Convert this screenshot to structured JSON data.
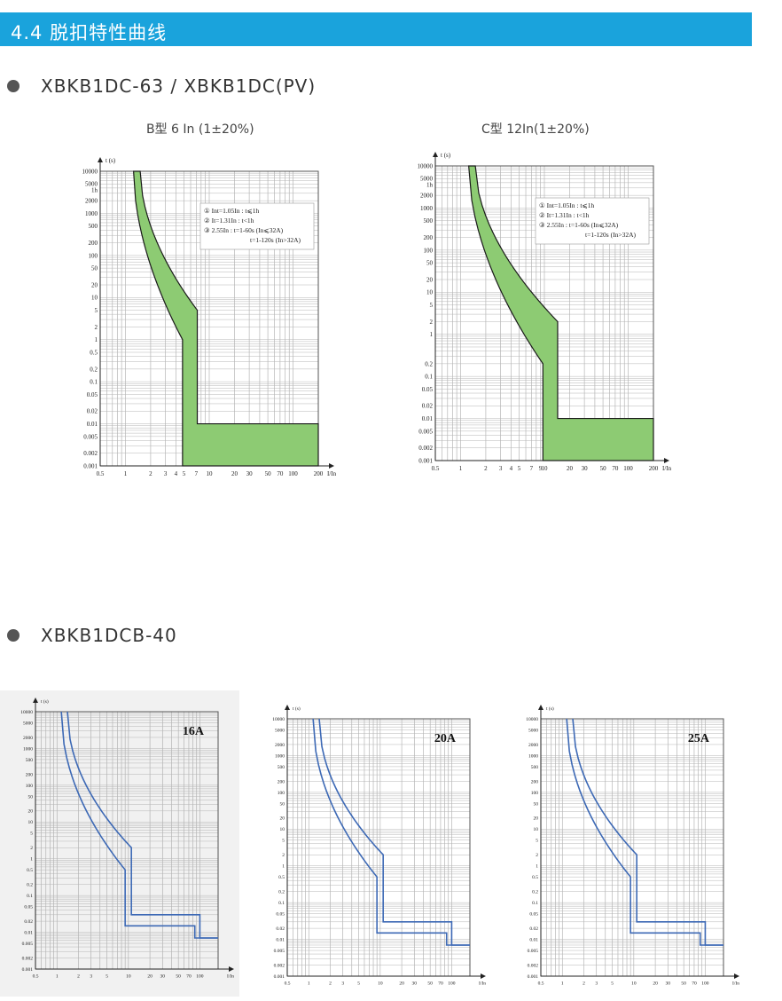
{
  "header": {
    "title": "4.4 脱扣特性曲线"
  },
  "sections": [
    {
      "bullet_label": "XBKB1DC-63 / XBKB1DC(PV)"
    },
    {
      "bullet_label": "XBKB1DCB-40"
    }
  ],
  "colors": {
    "header": "#1aa3dc",
    "band_fill": "#8dcb73",
    "curve_blue": "#3d69b5",
    "grid": "#b5b5b5"
  },
  "chart_data": [
    {
      "type": "line",
      "title": "B型 6 In (1±20%)",
      "ylabel": "t (s)",
      "xlabel": "I/In",
      "x_ticks": [
        "0.5",
        "1",
        "2",
        "3",
        "4",
        "5",
        "7",
        "10",
        "20",
        "30",
        "50",
        "70",
        "100",
        "200"
      ],
      "y_ticks": [
        "10000",
        "5000",
        "1h",
        "2000",
        "1000",
        "500",
        "200",
        "100",
        "50",
        "20",
        "10",
        "5",
        "2",
        "1",
        "0.5",
        "0.2",
        "0.1",
        "0.05",
        "0.02",
        "0.01",
        "0.005",
        "0.002",
        "0.001"
      ],
      "notes": [
        "① Int=1.05In : t⩽1h",
        "② It=1.31In : t<1h",
        "③ 2.55In : t=1-60s (In⩽32A)",
        "t=1-120s (In>32A)"
      ],
      "band": {
        "min_trip_multiple": 4.8,
        "max_trip_multiple": 7.2,
        "instant_time_s": 0.01
      }
    },
    {
      "type": "line",
      "title": "C型 12In(1±20%)",
      "ylabel": "t (s)",
      "xlabel": "I/In",
      "x_ticks": [
        "0.5",
        "1",
        "2",
        "3",
        "4",
        "5",
        "7",
        "9",
        "10",
        "20",
        "30",
        "50",
        "70",
        "100",
        "200"
      ],
      "y_ticks": [
        "10000",
        "5000",
        "1h",
        "2000",
        "1000",
        "500",
        "200",
        "100",
        "50",
        "20",
        "10",
        "5",
        "2",
        "1",
        "0.2",
        "0.1",
        "0.05",
        "0.02",
        "0.01",
        "0.005",
        "0.002",
        "0.001"
      ],
      "notes": [
        "① Int=1.05In : t⩽1h",
        "② It=1.31In : t<1h",
        "③ 2.55In : t=1-60s (In⩽32A)",
        "t=1-120s (In>32A)"
      ],
      "band": {
        "min_trip_multiple": 9.6,
        "max_trip_multiple": 14.4,
        "instant_time_s": 0.01
      }
    },
    {
      "type": "line",
      "title": "16A",
      "ylabel": "t (s)",
      "xlabel": "I/In",
      "x_ticks": [
        "0.5",
        "1",
        "2",
        "3",
        "5",
        "10",
        "20",
        "30",
        "50",
        "70",
        "100"
      ],
      "y_ticks": [
        "10000",
        "5000",
        "2000",
        "1000",
        "500",
        "200",
        "100",
        "50",
        "20",
        "10",
        "5",
        "2",
        "1",
        "0.5",
        "0.2",
        "0.1",
        "0.05",
        "0.02",
        "0.01",
        "0.005",
        "0.002",
        "0.001"
      ]
    },
    {
      "type": "line",
      "title": "20A",
      "ylabel": "t (s)",
      "xlabel": "I/In",
      "x_ticks": [
        "0.5",
        "1",
        "2",
        "3",
        "5",
        "10",
        "20",
        "30",
        "50",
        "70",
        "100"
      ],
      "y_ticks": [
        "10000",
        "5000",
        "2000",
        "1000",
        "500",
        "200",
        "100",
        "50",
        "20",
        "10",
        "5",
        "2",
        "1",
        "0.5",
        "0.2",
        "0.1",
        "0.05",
        "0.02",
        "0.01",
        "0.005",
        "0.002",
        "0.001"
      ]
    },
    {
      "type": "line",
      "title": "25A",
      "ylabel": "t (s)",
      "xlabel": "I/In",
      "x_ticks": [
        "0.5",
        "1",
        "2",
        "3",
        "5",
        "10",
        "20",
        "30",
        "50",
        "70",
        "100"
      ],
      "y_ticks": [
        "10000",
        "5000",
        "2000",
        "1000",
        "500",
        "200",
        "100",
        "50",
        "20",
        "10",
        "5",
        "2",
        "1",
        "0.5",
        "0.2",
        "0.1",
        "0.05",
        "0.02",
        "0.01",
        "0.005",
        "0.002",
        "0.001"
      ]
    }
  ]
}
